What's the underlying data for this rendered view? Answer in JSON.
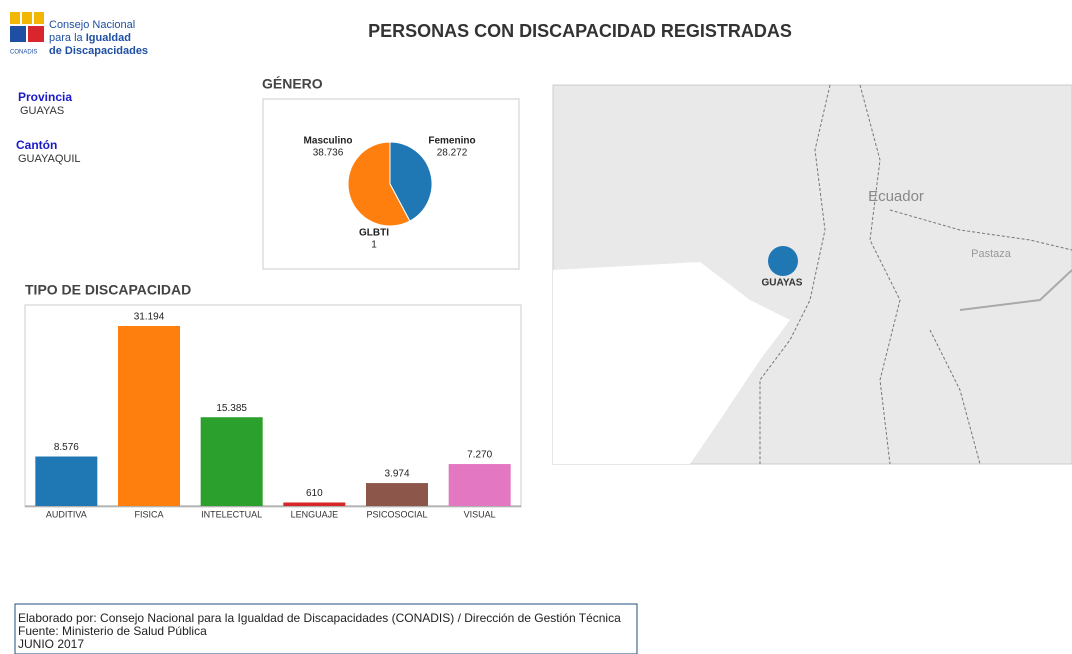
{
  "logo": {
    "lines": [
      "Consejo Nacional",
      "para la",
      "Igualdad",
      "de Discapacidades"
    ],
    "acronym": "CONADIS"
  },
  "header": {
    "title": "PERSONAS CON DISCAPACIDAD REGISTRADAS"
  },
  "filters": [
    {
      "label": "Provincia",
      "value": "GUAYAS"
    },
    {
      "label": "Cantón",
      "value": "GUAYAQUIL"
    }
  ],
  "chart_data": [
    {
      "type": "pie",
      "title": "GÉNERO",
      "categories": [
        "Femenino",
        "GLBTI",
        "Masculino"
      ],
      "values": [
        28272,
        1,
        38736
      ],
      "value_labels": [
        "28.272",
        "1",
        "38.736"
      ],
      "colors": [
        "#1f77b4",
        "#2ca02c",
        "#ff7f0e"
      ]
    },
    {
      "type": "bar",
      "title": "TIPO DE DISCAPACIDAD",
      "categories": [
        "AUDITIVA",
        "FISICA",
        "INTELECTUAL",
        "LENGUAJE",
        "PSICOSOCIAL",
        "VISUAL"
      ],
      "values": [
        8576,
        31194,
        15385,
        610,
        3974,
        7270
      ],
      "value_labels": [
        "8.576",
        "31.194",
        "15.385",
        "610",
        "3.974",
        "7.270"
      ],
      "colors": [
        "#1f77b4",
        "#ff7f0e",
        "#2ca02c",
        "#d62728",
        "#8c564b",
        "#e377c2"
      ]
    }
  ],
  "map": {
    "labels": [
      "Ecuador",
      "Pastaza"
    ],
    "marker": "GUAYAS"
  },
  "footer": {
    "lines": [
      "Elaborado por: Consejo Nacional para la Igualdad de Discapacidades (CONADIS) / Dirección de Gestión Técnica",
      "Fuente: Ministerio de Salud Pública",
      "JUNIO 2017"
    ]
  }
}
